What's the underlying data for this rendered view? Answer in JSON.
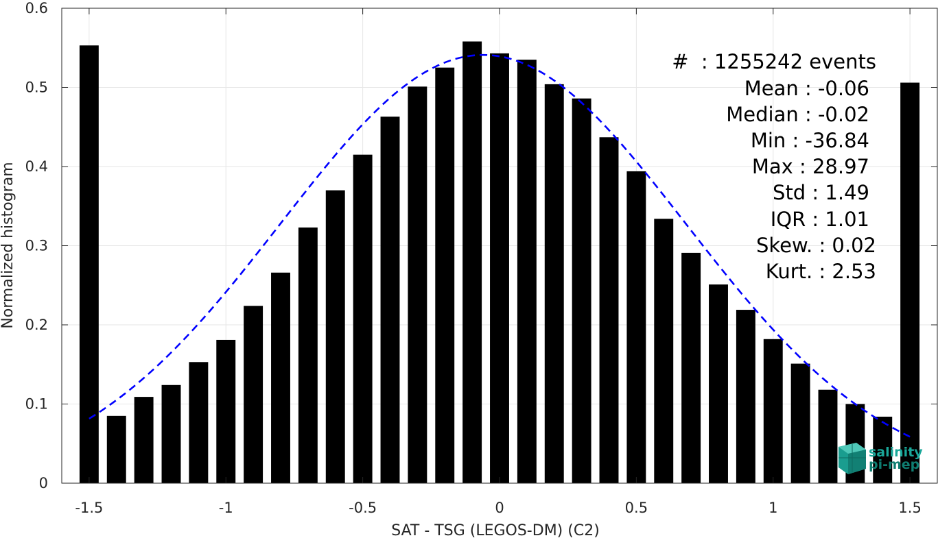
{
  "chart_data": {
    "type": "bar",
    "xlabel": "SAT - TSG (LEGOS-DM) (C2)",
    "ylabel": "Normalized histogram",
    "xlim": [
      -1.6,
      1.6
    ],
    "ylim": [
      0,
      0.6
    ],
    "xticks": [
      -1.5,
      -1,
      -0.5,
      0,
      0.5,
      1,
      1.5
    ],
    "xtick_labels": [
      "-1.5",
      "-1",
      "-0.5",
      "0",
      "0.5",
      "1",
      "1.5"
    ],
    "yticks": [
      0,
      0.1,
      0.2,
      0.3,
      0.4,
      0.5,
      0.6
    ],
    "ytick_labels": [
      "0",
      "0.1",
      "0.2",
      "0.3",
      "0.4",
      "0.5",
      "0.6"
    ],
    "grid": true,
    "bar_width": 0.07,
    "bars": {
      "x": [
        -1.5,
        -1.4,
        -1.3,
        -1.2,
        -1.1,
        -1.0,
        -0.9,
        -0.8,
        -0.7,
        -0.6,
        -0.5,
        -0.4,
        -0.3,
        -0.2,
        -0.1,
        0.0,
        0.1,
        0.2,
        0.3,
        0.4,
        0.5,
        0.6,
        0.7,
        0.8,
        0.9,
        1.0,
        1.1,
        1.2,
        1.3,
        1.4,
        1.5
      ],
      "values": [
        0.553,
        0.085,
        0.109,
        0.124,
        0.153,
        0.181,
        0.224,
        0.266,
        0.323,
        0.37,
        0.415,
        0.463,
        0.501,
        0.525,
        0.558,
        0.543,
        0.535,
        0.504,
        0.486,
        0.437,
        0.394,
        0.334,
        0.291,
        0.251,
        0.219,
        0.182,
        0.151,
        0.118,
        0.1,
        0.084,
        0.506
      ],
      "color": "#000000"
    },
    "fit_curve": {
      "style": "dashed",
      "color": "#0000ff",
      "x_range": [
        -1.5,
        1.5
      ],
      "mean": -0.06,
      "std": 0.74,
      "peak": 0.541
    }
  },
  "stats": {
    "events": "#  : 1255242 events",
    "mean": "Mean : -0.06",
    "median": "Median : -0.02",
    "min": "Min : -36.84",
    "max": "Max : 28.97",
    "std": "Std : 1.49",
    "iqr": "IQR : 1.01",
    "skew": "Skew. : 0.02",
    "kurt": "Kurt. : 2.53"
  },
  "logo": {
    "line1": "salinity",
    "line2": "pi-mep",
    "color": "#1aa89a"
  }
}
